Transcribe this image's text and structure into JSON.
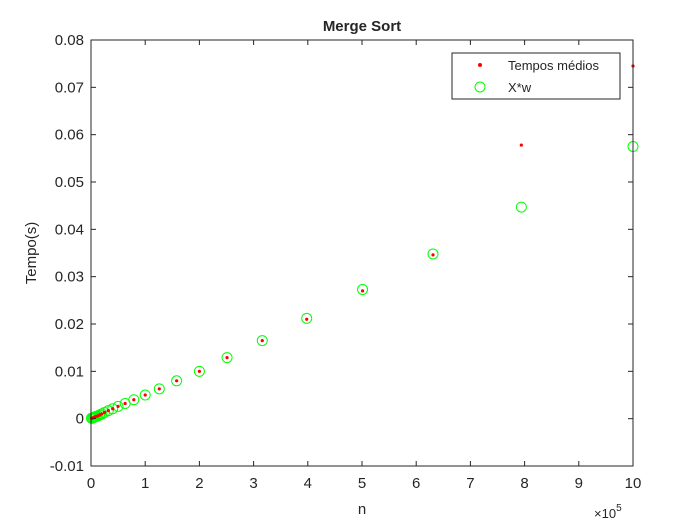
{
  "chart_data": {
    "type": "scatter",
    "title": "Merge Sort",
    "xlabel": "n",
    "ylabel": "Tempo(s)",
    "x_exponent_label": "×10",
    "x_exponent_power": "5",
    "x_tick_scale": 100000,
    "xlim": [
      0,
      1000000
    ],
    "ylim": [
      -0.01,
      0.08
    ],
    "x_ticks": [
      0,
      1,
      2,
      3,
      4,
      5,
      6,
      7,
      8,
      9,
      10
    ],
    "y_ticks": [
      -0.01,
      0,
      0.01,
      0.02,
      0.03,
      0.04,
      0.05,
      0.06,
      0.07,
      0.08
    ],
    "y_tick_labels": [
      "-0.01",
      "0",
      "0.01",
      "0.02",
      "0.03",
      "0.04",
      "0.05",
      "0.06",
      "0.07",
      "0.08"
    ],
    "grid": false,
    "legend_position": "top-right",
    "series": [
      {
        "name": "Tempos médios",
        "marker": "dot",
        "color": "#ff0000",
        "x": [
          1000,
          2000,
          4000,
          6000,
          8000,
          10000,
          13000,
          16000,
          20000,
          25000,
          32000,
          40000,
          50000,
          63000,
          79000,
          100000,
          126000,
          158000,
          200000,
          251000,
          316000,
          398000,
          501000,
          631000,
          794000,
          1000000
        ],
        "y": [
          0.0001,
          0.0001,
          0.0002,
          0.0003,
          0.0004,
          0.0005,
          0.0006,
          0.0008,
          0.001,
          0.0013,
          0.0017,
          0.0021,
          0.0026,
          0.0032,
          0.004,
          0.005,
          0.0063,
          0.008,
          0.01,
          0.0129,
          0.0165,
          0.021,
          0.027,
          0.0346,
          0.0578,
          0.0745
        ]
      },
      {
        "name": "X*w",
        "marker": "circle",
        "color": "#00ff00",
        "x": [
          1000,
          2000,
          4000,
          6000,
          8000,
          10000,
          13000,
          16000,
          20000,
          25000,
          32000,
          40000,
          50000,
          63000,
          79000,
          100000,
          126000,
          158000,
          200000,
          251000,
          316000,
          398000,
          501000,
          631000,
          794000,
          1000000
        ],
        "y": [
          0.0001,
          0.0001,
          0.0002,
          0.0003,
          0.0004,
          0.0005,
          0.0006,
          0.0008,
          0.001,
          0.0013,
          0.0017,
          0.0021,
          0.0026,
          0.0032,
          0.004,
          0.005,
          0.0063,
          0.008,
          0.01,
          0.0129,
          0.0165,
          0.0212,
          0.0273,
          0.0348,
          0.0447,
          0.0575
        ]
      }
    ]
  }
}
